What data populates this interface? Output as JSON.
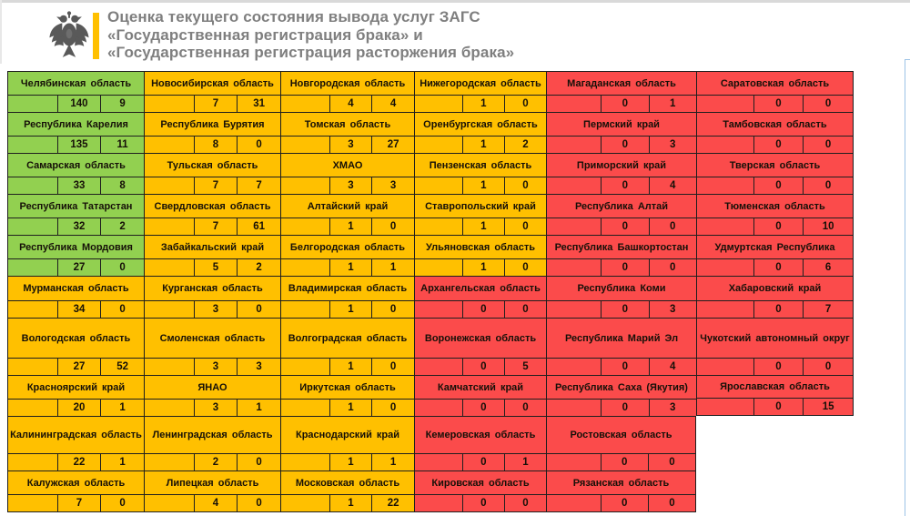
{
  "header": {
    "title_line1": "Оценка текущего состояния вывода услуг ЗАГС",
    "title_line2": "«Государственная регистрация брака» и",
    "title_line3": "«Государственная регистрация расторжения брака»",
    "coat_of_arms_icon": "double-headed-eagle-icon",
    "accent_color": "#FFC000",
    "title_color": "#7F7F7F"
  },
  "legend": {
    "status_colors": {
      "green": "#92D050",
      "amber": "#FFC000",
      "red": "#FB4B4B"
    },
    "border_color": "#1F1F1F"
  },
  "grid": {
    "columns": 6,
    "rows": 10,
    "cells": [
      {
        "row": 1,
        "col": 1,
        "status": "green",
        "name": "Челябинская область",
        "v1": "140",
        "v2": "9"
      },
      {
        "row": 1,
        "col": 2,
        "status": "amber",
        "name": "Новосибирская область",
        "v1": "7",
        "v2": "31"
      },
      {
        "row": 1,
        "col": 3,
        "status": "amber",
        "name": "Новгородская область",
        "v1": "4",
        "v2": "4"
      },
      {
        "row": 1,
        "col": 4,
        "status": "amber",
        "name": "Нижегородская область",
        "v1": "1",
        "v2": "0"
      },
      {
        "row": 1,
        "col": 5,
        "status": "red",
        "name": "Магаданская область",
        "v1": "0",
        "v2": "1"
      },
      {
        "row": 1,
        "col": 6,
        "status": "red",
        "name": "Саратовская область",
        "v1": "0",
        "v2": "0"
      },
      {
        "row": 2,
        "col": 1,
        "status": "green",
        "name": "Республика Карелия",
        "v1": "135",
        "v2": "11"
      },
      {
        "row": 2,
        "col": 2,
        "status": "amber",
        "name": "Республика Бурятия",
        "v1": "8",
        "v2": "0"
      },
      {
        "row": 2,
        "col": 3,
        "status": "amber",
        "name": "Томская область",
        "v1": "3",
        "v2": "27"
      },
      {
        "row": 2,
        "col": 4,
        "status": "amber",
        "name": "Оренбургская область",
        "v1": "1",
        "v2": "2"
      },
      {
        "row": 2,
        "col": 5,
        "status": "red",
        "name": "Пермский край",
        "v1": "0",
        "v2": "3"
      },
      {
        "row": 2,
        "col": 6,
        "status": "red",
        "name": "Тамбовская область",
        "v1": "0",
        "v2": "0"
      },
      {
        "row": 3,
        "col": 1,
        "status": "green",
        "name": "Самарская область",
        "v1": "33",
        "v2": "8"
      },
      {
        "row": 3,
        "col": 2,
        "status": "amber",
        "name": "Тульская область",
        "v1": "7",
        "v2": "7"
      },
      {
        "row": 3,
        "col": 3,
        "status": "amber",
        "name": "ХМАО",
        "v1": "3",
        "v2": "3"
      },
      {
        "row": 3,
        "col": 4,
        "status": "amber",
        "name": "Пензенская область",
        "v1": "1",
        "v2": "0"
      },
      {
        "row": 3,
        "col": 5,
        "status": "red",
        "name": "Приморский край",
        "v1": "0",
        "v2": "4"
      },
      {
        "row": 3,
        "col": 6,
        "status": "red",
        "name": "Тверская область",
        "v1": "0",
        "v2": "0"
      },
      {
        "row": 4,
        "col": 1,
        "status": "green",
        "name": "Республика Татарстан",
        "v1": "32",
        "v2": "2"
      },
      {
        "row": 4,
        "col": 2,
        "status": "amber",
        "name": "Свердловская область",
        "v1": "7",
        "v2": "61"
      },
      {
        "row": 4,
        "col": 3,
        "status": "amber",
        "name": "Алтайский край",
        "v1": "1",
        "v2": "0"
      },
      {
        "row": 4,
        "col": 4,
        "status": "amber",
        "name": "Ставропольский край",
        "v1": "1",
        "v2": "0"
      },
      {
        "row": 4,
        "col": 5,
        "status": "red",
        "name": "Республика Алтай",
        "v1": "0",
        "v2": "0"
      },
      {
        "row": 4,
        "col": 6,
        "status": "red",
        "name": "Тюменская область",
        "v1": "0",
        "v2": "10"
      },
      {
        "row": 5,
        "col": 1,
        "status": "green",
        "name": "Республика Мордовия",
        "v1": "27",
        "v2": "0"
      },
      {
        "row": 5,
        "col": 2,
        "status": "amber",
        "name": "Забайкальский край",
        "v1": "5",
        "v2": "2"
      },
      {
        "row": 5,
        "col": 3,
        "status": "amber",
        "name": "Белгородская область",
        "v1": "1",
        "v2": "1"
      },
      {
        "row": 5,
        "col": 4,
        "status": "amber",
        "name": "Ульяновская область",
        "v1": "1",
        "v2": "0"
      },
      {
        "row": 5,
        "col": 5,
        "status": "red",
        "name": "Республика Башкортостан",
        "v1": "0",
        "v2": "0"
      },
      {
        "row": 5,
        "col": 6,
        "status": "red",
        "name": "Удмуртская Республика",
        "v1": "0",
        "v2": "6"
      },
      {
        "row": 6,
        "col": 1,
        "status": "amber",
        "name": "Мурманская область",
        "v1": "34",
        "v2": "0"
      },
      {
        "row": 6,
        "col": 2,
        "status": "amber",
        "name": "Курганская область",
        "v1": "3",
        "v2": "0"
      },
      {
        "row": 6,
        "col": 3,
        "status": "amber",
        "name": "Владимирская область",
        "v1": "1",
        "v2": "0"
      },
      {
        "row": 6,
        "col": 4,
        "status": "red",
        "name": "Архангельская область",
        "v1": "0",
        "v2": "0"
      },
      {
        "row": 6,
        "col": 5,
        "status": "red",
        "name": "Республика Коми",
        "v1": "0",
        "v2": "3"
      },
      {
        "row": 6,
        "col": 6,
        "status": "red",
        "name": "Хабаровский край",
        "v1": "0",
        "v2": "7"
      },
      {
        "row": 7,
        "col": 1,
        "status": "amber",
        "name": "Вологодская область",
        "v1": "27",
        "v2": "52"
      },
      {
        "row": 7,
        "col": 2,
        "status": "amber",
        "name": "Смоленская область",
        "v1": "3",
        "v2": "3"
      },
      {
        "row": 7,
        "col": 3,
        "status": "amber",
        "name": "Волгоградская область",
        "v1": "1",
        "v2": "0"
      },
      {
        "row": 7,
        "col": 4,
        "status": "red",
        "name": "Воронежская область",
        "v1": "0",
        "v2": "5"
      },
      {
        "row": 7,
        "col": 5,
        "status": "red",
        "name": "Республика Марий Эл",
        "v1": "0",
        "v2": "4"
      },
      {
        "row": 7,
        "col": 6,
        "status": "red",
        "name": "Чукотский автономный округ",
        "v1": "0",
        "v2": "0"
      },
      {
        "row": 8,
        "col": 1,
        "status": "amber",
        "name": "Красноярский край",
        "v1": "20",
        "v2": "1"
      },
      {
        "row": 8,
        "col": 2,
        "status": "amber",
        "name": "ЯНАО",
        "v1": "3",
        "v2": "1"
      },
      {
        "row": 8,
        "col": 3,
        "status": "amber",
        "name": "Иркутская область",
        "v1": "1",
        "v2": "0"
      },
      {
        "row": 8,
        "col": 4,
        "status": "red",
        "name": "Камчатский край",
        "v1": "0",
        "v2": "0"
      },
      {
        "row": 8,
        "col": 5,
        "status": "red",
        "name": "Республика Саха (Якутия)",
        "v1": "0",
        "v2": "3"
      },
      {
        "row": 8,
        "col": 6,
        "status": "red",
        "name": "Ярославская область",
        "v1": "0",
        "v2": "15"
      },
      {
        "row": 9,
        "col": 1,
        "status": "amber",
        "name": "Калининградская область",
        "v1": "22",
        "v2": "1"
      },
      {
        "row": 9,
        "col": 2,
        "status": "amber",
        "name": "Ленинградская область",
        "v1": "2",
        "v2": "0"
      },
      {
        "row": 9,
        "col": 3,
        "status": "amber",
        "name": "Краснодарский край",
        "v1": "1",
        "v2": "1"
      },
      {
        "row": 9,
        "col": 4,
        "status": "red",
        "name": "Кемеровская область",
        "v1": "0",
        "v2": "1"
      },
      {
        "row": 9,
        "col": 5,
        "status": "red",
        "name": "Ростовская область",
        "v1": "0",
        "v2": "0"
      },
      {
        "row": 10,
        "col": 1,
        "status": "amber",
        "name": "Калужская область",
        "v1": "7",
        "v2": "0"
      },
      {
        "row": 10,
        "col": 2,
        "status": "amber",
        "name": "Липецкая область",
        "v1": "4",
        "v2": "0"
      },
      {
        "row": 10,
        "col": 3,
        "status": "amber",
        "name": "Московская область",
        "v1": "1",
        "v2": "22"
      },
      {
        "row": 10,
        "col": 4,
        "status": "red",
        "name": "Кировская область",
        "v1": "0",
        "v2": "0"
      },
      {
        "row": 10,
        "col": 5,
        "status": "red",
        "name": "Рязанская область",
        "v1": "0",
        "v2": "0"
      }
    ]
  }
}
